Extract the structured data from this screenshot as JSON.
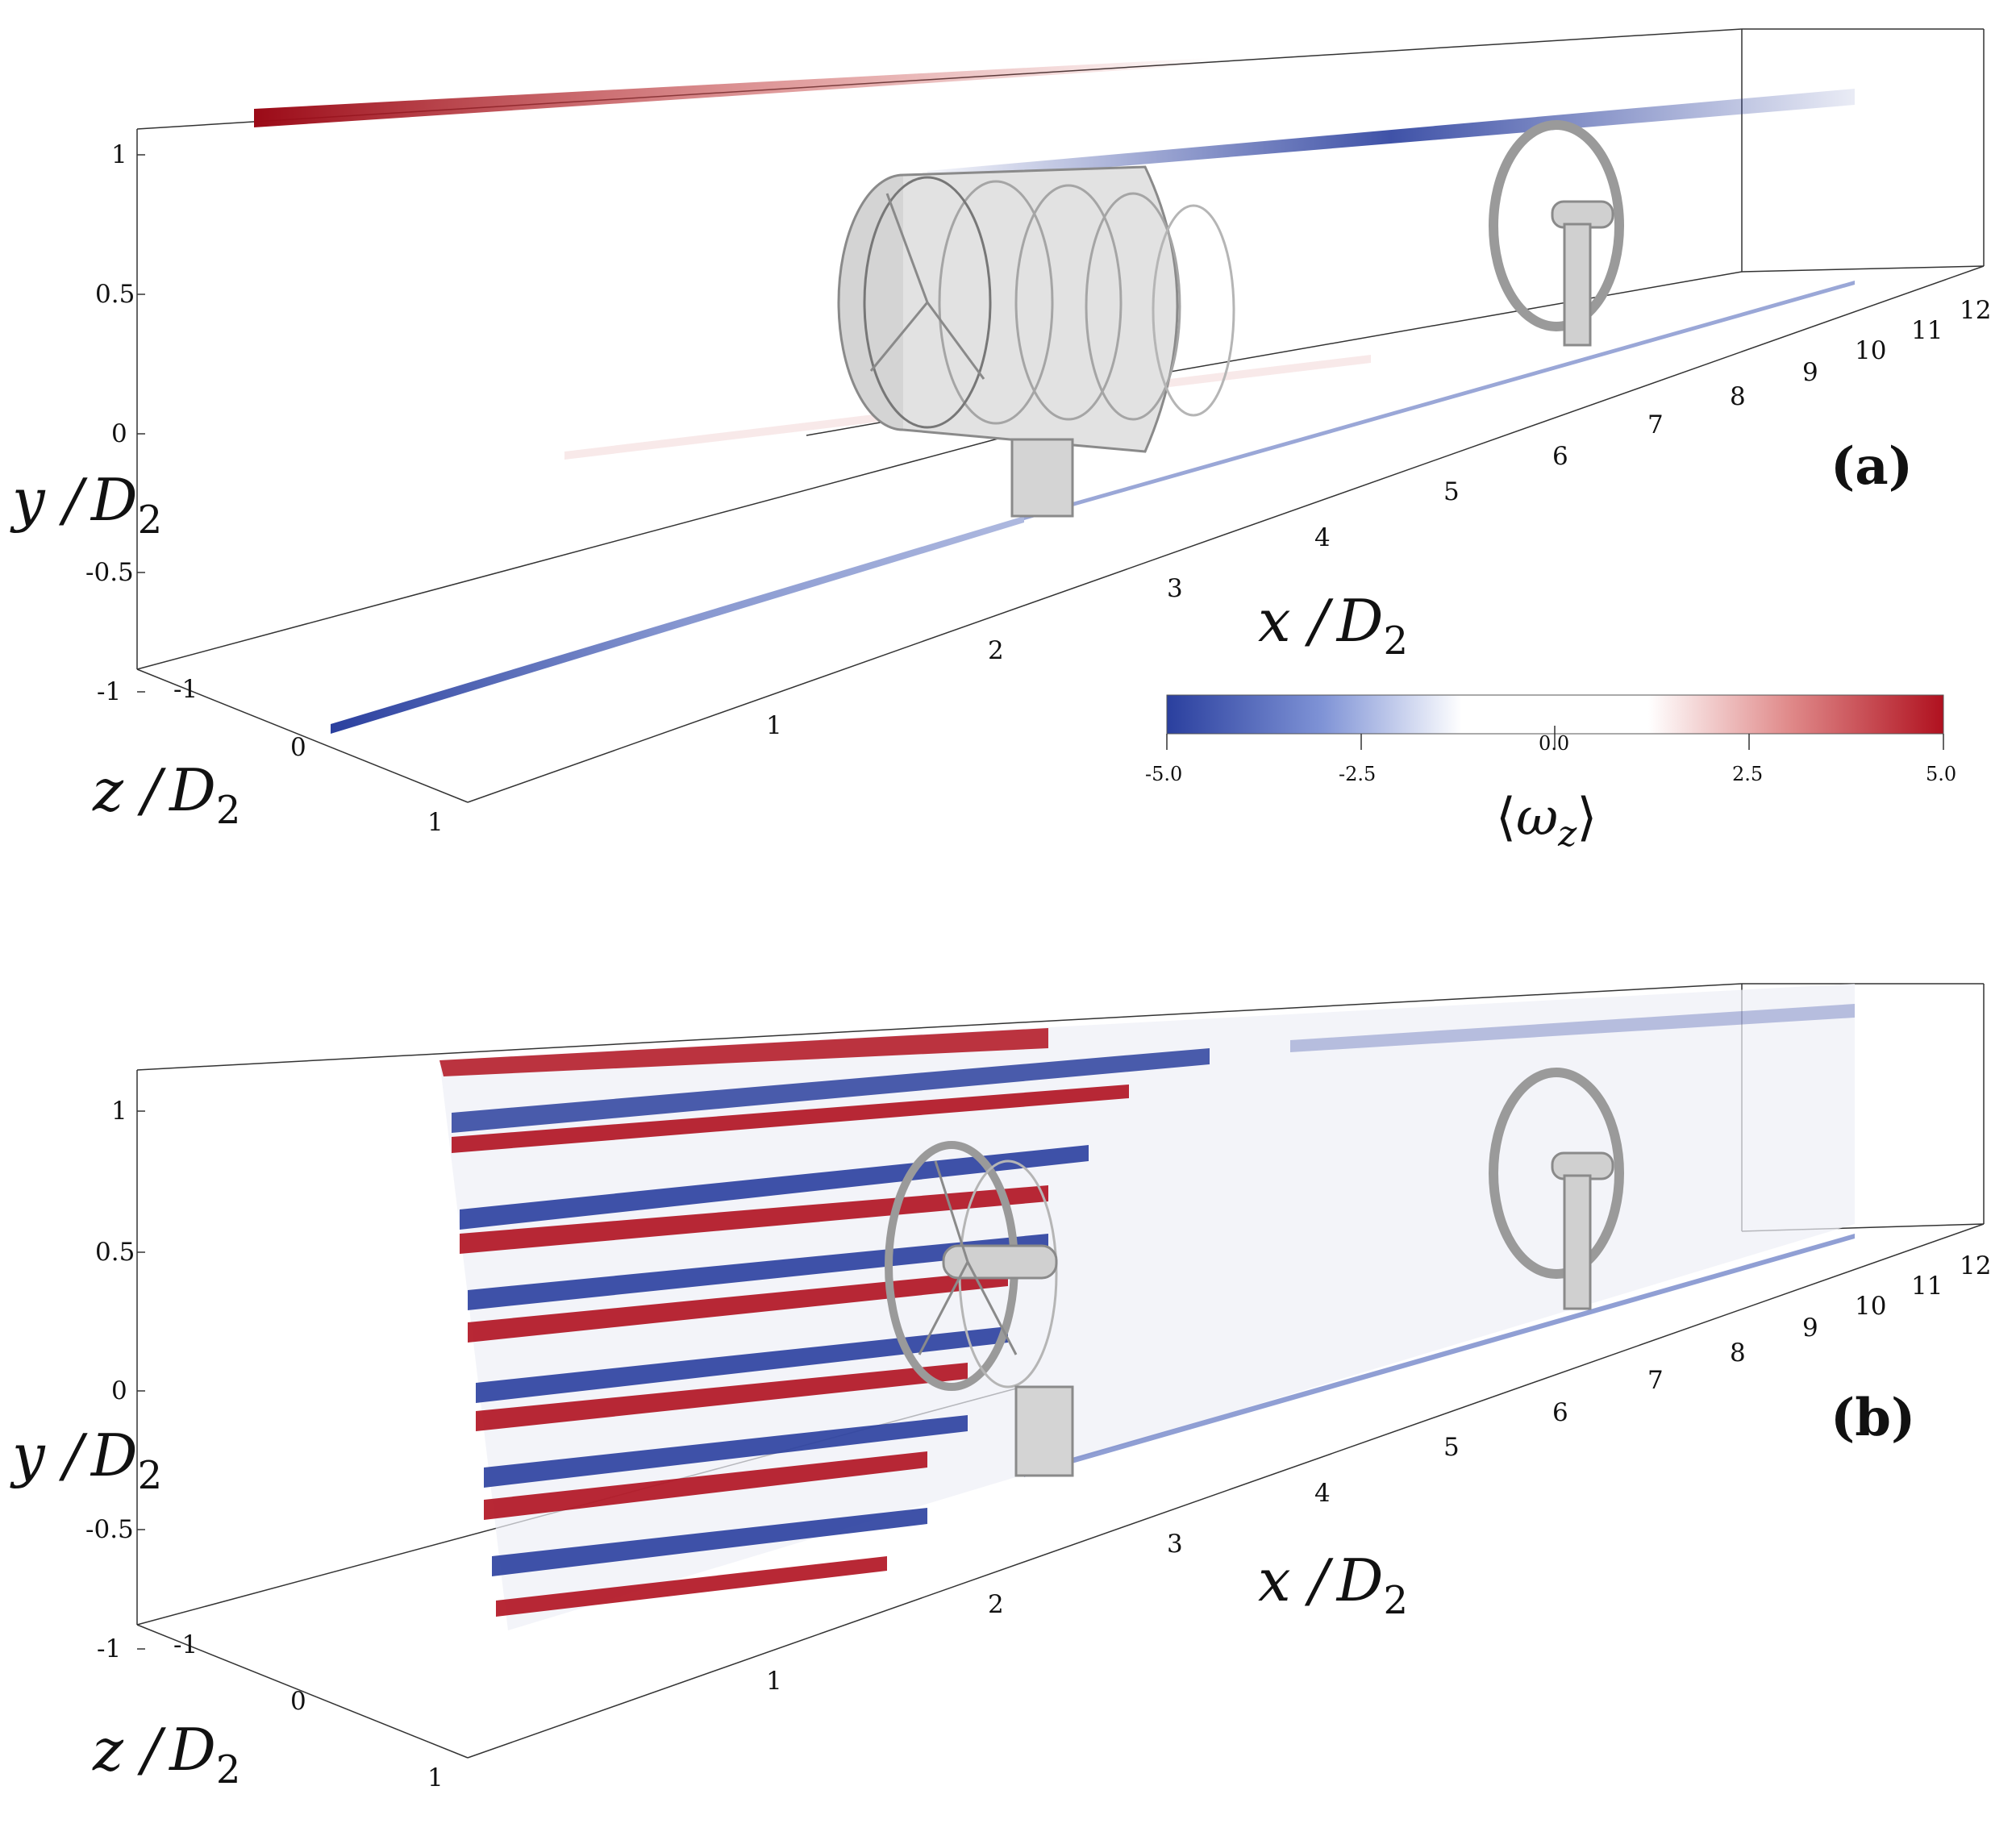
{
  "panels": [
    {
      "id": "a",
      "label": "(a)",
      "axes": {
        "y_label": "y / D2",
        "y_label_main": "y /",
        "y_label_var": "D",
        "y_label_sub": "2",
        "x_label_main": "x /",
        "x_label_var": "D",
        "x_label_sub": "2",
        "z_label_main": "z /",
        "z_label_var": "D",
        "z_label_sub": "2",
        "y_ticks": [
          "1",
          "0.5",
          "0",
          "-0.5",
          "-1"
        ],
        "x_ticks": [
          "1",
          "2",
          "3",
          "4",
          "5",
          "6",
          "7",
          "8",
          "9",
          "10",
          "11",
          "12"
        ],
        "z_ticks": [
          "-1",
          "0",
          "1"
        ]
      }
    },
    {
      "id": "b",
      "label": "(b)",
      "axes": {
        "y_label_main": "y /",
        "y_label_var": "D",
        "y_label_sub": "2",
        "x_label_main": "x /",
        "x_label_var": "D",
        "x_label_sub": "2",
        "z_label_main": "z /",
        "z_label_var": "D",
        "z_label_sub": "2",
        "y_ticks": [
          "1",
          "0.5",
          "0",
          "-0.5",
          "-1"
        ],
        "x_ticks": [
          "1",
          "2",
          "3",
          "4",
          "5",
          "6",
          "7",
          "8",
          "9",
          "10",
          "11",
          "12"
        ],
        "z_ticks": [
          "-1",
          "0",
          "1"
        ]
      }
    }
  ],
  "colorbar": {
    "ticks": [
      "-5.0",
      "-2.5",
      "0.0",
      "2.5",
      "5.0"
    ],
    "title_left": "⟨",
    "title_var": "ω",
    "title_sub": "z",
    "title_right": "⟩",
    "range": [
      -5.0,
      5.0
    ],
    "colors": {
      "negative": "#2a3f9e",
      "zero": "#ffffff",
      "positive": "#b0111f"
    }
  }
}
